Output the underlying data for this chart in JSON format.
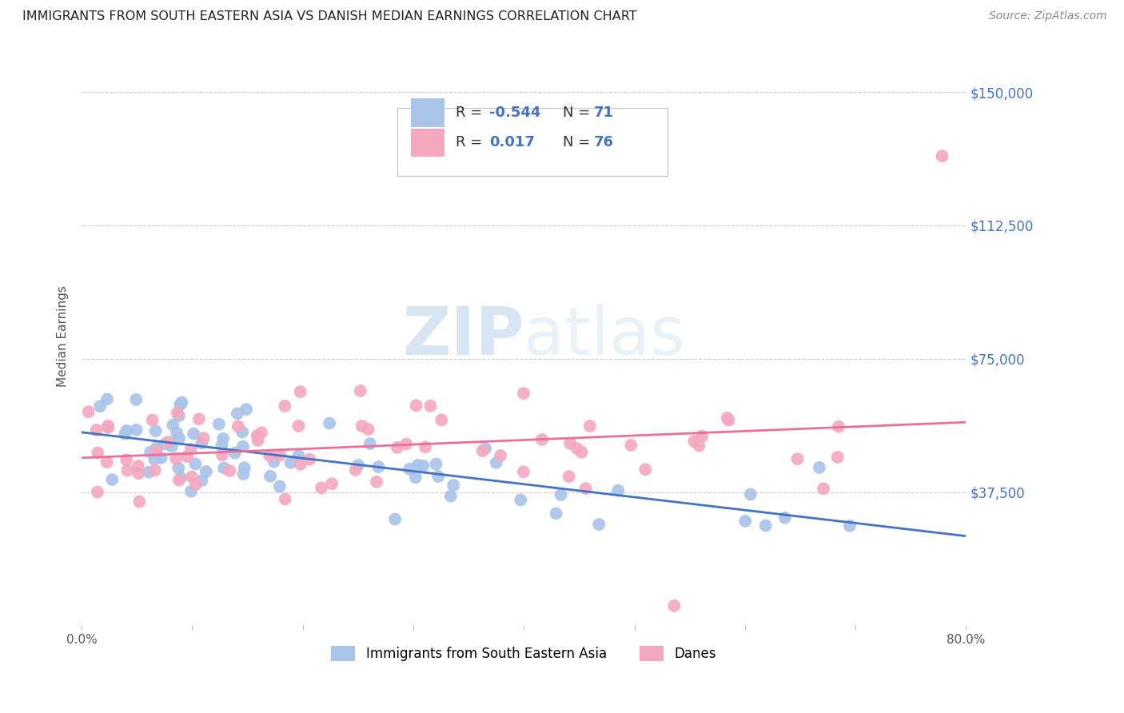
{
  "title": "IMMIGRANTS FROM SOUTH EASTERN ASIA VS DANISH MEDIAN EARNINGS CORRELATION CHART",
  "source": "Source: ZipAtlas.com",
  "ylabel": "Median Earnings",
  "ytick_labels": [
    "$37,500",
    "$75,000",
    "$112,500",
    "$150,000"
  ],
  "ytick_values": [
    37500,
    75000,
    112500,
    150000
  ],
  "ymin": 0,
  "ymax": 162500,
  "xmin": 0.0,
  "xmax": 0.8,
  "legend_label1": "Immigrants from South Eastern Asia",
  "legend_label2": "Danes",
  "R1": -0.544,
  "N1": 71,
  "R2": 0.017,
  "N2": 76,
  "color_blue": "#A8C4E8",
  "color_pink": "#F4A8C0",
  "line_color_blue": "#4472C4",
  "line_color_pink": "#E8709A",
  "watermark_zip": "ZIP",
  "watermark_atlas": "atlas",
  "background_color": "#FFFFFF",
  "blue_text_color": "#4472C4",
  "label_text_color": "#333333"
}
